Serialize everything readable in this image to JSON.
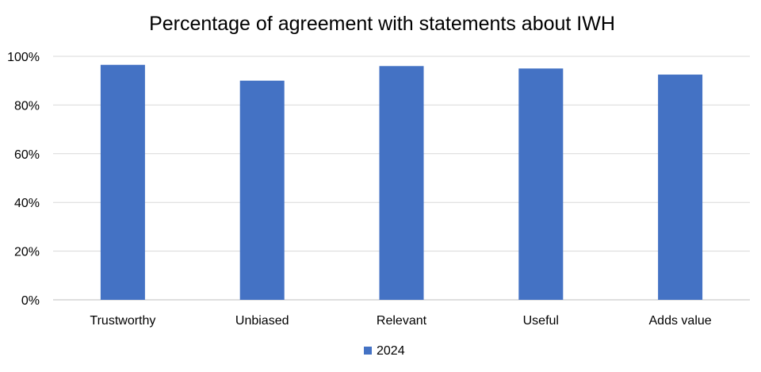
{
  "chart_data": {
    "type": "bar",
    "title": "Percentage of agreement with statements about IWH",
    "xlabel": "",
    "ylabel": "",
    "categories": [
      "Trustworthy",
      "Unbiased",
      "Relevant",
      "Useful",
      "Adds value"
    ],
    "series": [
      {
        "name": "2024",
        "values": [
          96.5,
          90,
          96,
          95,
          92.5
        ],
        "color": "#4472C4"
      }
    ],
    "ylim": [
      0,
      100
    ],
    "yticks": [
      0,
      20,
      40,
      60,
      80,
      100
    ],
    "ytick_labels": [
      "0%",
      "20%",
      "40%",
      "60%",
      "80%",
      "100%"
    ],
    "grid": true,
    "legend_position": "bottom"
  }
}
